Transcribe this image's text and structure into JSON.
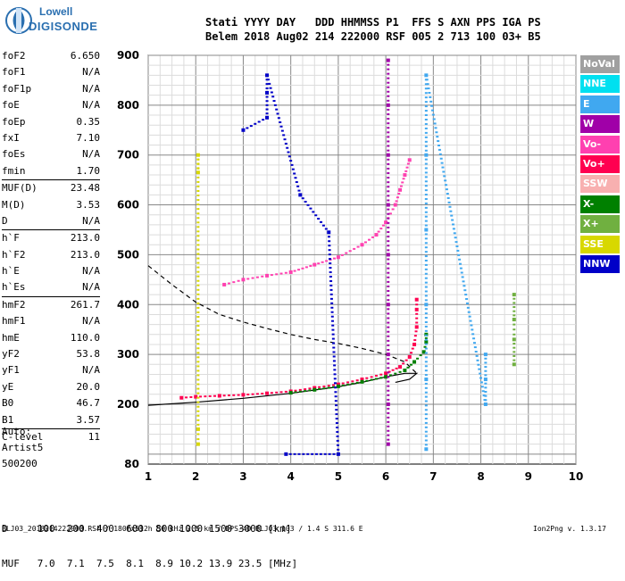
{
  "logo": {
    "line1": "Lowell",
    "line2": "DIGISONDE"
  },
  "header": {
    "row1": "Stati YYYY DAY   DDD HHMMSS P1  FFS S AXN PPS IGA PS",
    "row2": "Belem 2018 Aug02 214 222000 RSF 005 2 713 100 03+ B5"
  },
  "params": [
    {
      "k": "foF2",
      "v": "6.650"
    },
    {
      "k": "foF1",
      "v": "N/A"
    },
    {
      "k": "foF1p",
      "v": "N/A"
    },
    {
      "k": "foE",
      "v": "N/A"
    },
    {
      "k": "foEp",
      "v": "0.35"
    },
    {
      "k": "fxI",
      "v": "7.10"
    },
    {
      "k": "foEs",
      "v": "N/A"
    },
    {
      "k": "fmin",
      "v": "1.70"
    },
    {
      "k": "MUF(D)",
      "v": "23.48"
    },
    {
      "k": "M(D)",
      "v": "3.53"
    },
    {
      "k": "D",
      "v": "N/A"
    },
    {
      "k": "h`F",
      "v": "213.0"
    },
    {
      "k": "h`F2",
      "v": "213.0"
    },
    {
      "k": "h`E",
      "v": "N/A"
    },
    {
      "k": "h`Es",
      "v": "N/A"
    },
    {
      "k": "hmF2",
      "v": "261.7"
    },
    {
      "k": "hmF1",
      "v": "N/A"
    },
    {
      "k": "hmE",
      "v": "110.0"
    },
    {
      "k": "yF2",
      "v": "53.8"
    },
    {
      "k": "yF1",
      "v": "N/A"
    },
    {
      "k": "yE",
      "v": "20.0"
    },
    {
      "k": "B0",
      "v": "46.7"
    },
    {
      "k": "B1",
      "v": "3.57"
    },
    {
      "k": "C-level",
      "v": "11"
    }
  ],
  "auto": {
    "l1": "Auto:",
    "l2": "Artist5",
    "l3": "500200"
  },
  "legend": [
    {
      "label": "NoVal",
      "color": "#a0a0a0"
    },
    {
      "label": "NNE",
      "color": "#00e0f0"
    },
    {
      "label": "E",
      "color": "#40a8f0"
    },
    {
      "label": "W",
      "color": "#a000a8"
    },
    {
      "label": "Vo-",
      "color": "#ff40b0"
    },
    {
      "label": "Vo+",
      "color": "#ff0050"
    },
    {
      "label": "SSW",
      "color": "#f8b0b0"
    },
    {
      "label": "X-",
      "color": "#008000"
    },
    {
      "label": "X+",
      "color": "#70b040"
    },
    {
      "label": "SSE",
      "color": "#d8d800"
    },
    {
      "label": "NNW",
      "color": "#0000c8"
    }
  ],
  "dtable": {
    "row1": "D     100  200  400  600  800 1000 1500 3000 [km]",
    "row2": "MUF   7.0  7.1  7.5  8.1  8.9 10.2 13.9 23.5 [MHz]"
  },
  "footer": {
    "left": "BLJ03_2018214222000.RSF / 180fx512h 50 kHz 2.5 km / DPS-4D BLJ03 103 / 1.4 S 311.6 E",
    "right": "Ion2Png v. 1.3.17"
  },
  "chart_data": {
    "type": "scatter",
    "x_ticks": [
      1,
      2,
      3,
      4,
      5,
      6,
      7,
      8,
      9,
      10
    ],
    "y_ticks": [
      80,
      200,
      300,
      400,
      500,
      600,
      700,
      800,
      900
    ],
    "xlim": [
      1,
      10
    ],
    "ylim": [
      80,
      900
    ],
    "grid": true,
    "series": [
      {
        "name": "Vo+",
        "color": "#ff0050",
        "points": [
          [
            1.7,
            213
          ],
          [
            2.0,
            215
          ],
          [
            2.5,
            217
          ],
          [
            3.0,
            219
          ],
          [
            3.5,
            222
          ],
          [
            4.0,
            226
          ],
          [
            4.5,
            233
          ],
          [
            5.0,
            240
          ],
          [
            5.5,
            250
          ],
          [
            6.0,
            262
          ],
          [
            6.3,
            275
          ],
          [
            6.5,
            295
          ],
          [
            6.6,
            320
          ],
          [
            6.65,
            355
          ],
          [
            6.65,
            390
          ],
          [
            6.65,
            410
          ]
        ]
      },
      {
        "name": "X-",
        "color": "#008000",
        "points": [
          [
            4.0,
            223
          ],
          [
            4.5,
            229
          ],
          [
            5.0,
            236
          ],
          [
            5.5,
            245
          ],
          [
            6.0,
            255
          ],
          [
            6.4,
            268
          ],
          [
            6.6,
            285
          ],
          [
            6.8,
            305
          ],
          [
            6.85,
            325
          ],
          [
            6.85,
            340
          ]
        ]
      },
      {
        "name": "Vo-",
        "color": "#ff40b0",
        "points": [
          [
            2.6,
            440
          ],
          [
            3.0,
            450
          ],
          [
            3.5,
            458
          ],
          [
            4.0,
            465
          ],
          [
            4.5,
            480
          ],
          [
            5.0,
            495
          ],
          [
            5.5,
            520
          ],
          [
            5.8,
            540
          ],
          [
            6.0,
            565
          ],
          [
            6.2,
            600
          ],
          [
            6.3,
            630
          ],
          [
            6.4,
            660
          ],
          [
            6.5,
            690
          ]
        ]
      },
      {
        "name": "W",
        "color": "#a000a8",
        "points": [
          [
            6.05,
            120
          ],
          [
            6.05,
            200
          ],
          [
            6.05,
            300
          ],
          [
            6.05,
            400
          ],
          [
            6.05,
            500
          ],
          [
            6.05,
            600
          ],
          [
            6.05,
            700
          ],
          [
            6.05,
            800
          ],
          [
            6.05,
            890
          ]
        ]
      },
      {
        "name": "E",
        "color": "#40a8f0",
        "points": [
          [
            6.85,
            110
          ],
          [
            6.85,
            250
          ],
          [
            6.85,
            400
          ],
          [
            6.85,
            550
          ],
          [
            6.85,
            700
          ],
          [
            6.85,
            860
          ],
          [
            8.1,
            200
          ],
          [
            8.1,
            250
          ],
          [
            8.1,
            300
          ]
        ]
      },
      {
        "name": "NNW",
        "color": "#0000c8",
        "points": [
          [
            3.0,
            750
          ],
          [
            3.5,
            775
          ],
          [
            3.5,
            825
          ],
          [
            3.5,
            860
          ],
          [
            4.2,
            620
          ],
          [
            4.8,
            545
          ],
          [
            5.0,
            100
          ],
          [
            3.9,
            100
          ]
        ]
      },
      {
        "name": "X+",
        "color": "#70b040",
        "points": [
          [
            8.7,
            280
          ],
          [
            8.7,
            330
          ],
          [
            8.7,
            370
          ],
          [
            8.7,
            420
          ]
        ]
      },
      {
        "name": "SSE",
        "color": "#d8d800",
        "points": [
          [
            2.05,
            665
          ],
          [
            2.05,
            700
          ],
          [
            2.05,
            150
          ],
          [
            2.05,
            120
          ]
        ]
      }
    ],
    "model_curves": [
      {
        "name": "profile",
        "style": "solid",
        "points": [
          [
            1,
            198
          ],
          [
            2,
            204
          ],
          [
            3,
            212
          ],
          [
            4,
            222
          ],
          [
            5,
            235
          ],
          [
            5.5,
            244
          ],
          [
            6,
            255
          ],
          [
            6.4,
            262
          ],
          [
            6.65,
            262
          ],
          [
            6.5,
            250
          ],
          [
            6.2,
            244
          ]
        ]
      },
      {
        "name": "dashed",
        "style": "dashed",
        "points": [
          [
            1,
            478
          ],
          [
            1.5,
            440
          ],
          [
            2.0,
            405
          ],
          [
            2.5,
            380
          ],
          [
            3.0,
            365
          ],
          [
            3.5,
            352
          ],
          [
            4.0,
            340
          ],
          [
            4.5,
            330
          ],
          [
            5.0,
            322
          ],
          [
            5.5,
            312
          ],
          [
            6.0,
            300
          ],
          [
            6.4,
            285
          ],
          [
            6.65,
            262
          ]
        ]
      }
    ]
  }
}
